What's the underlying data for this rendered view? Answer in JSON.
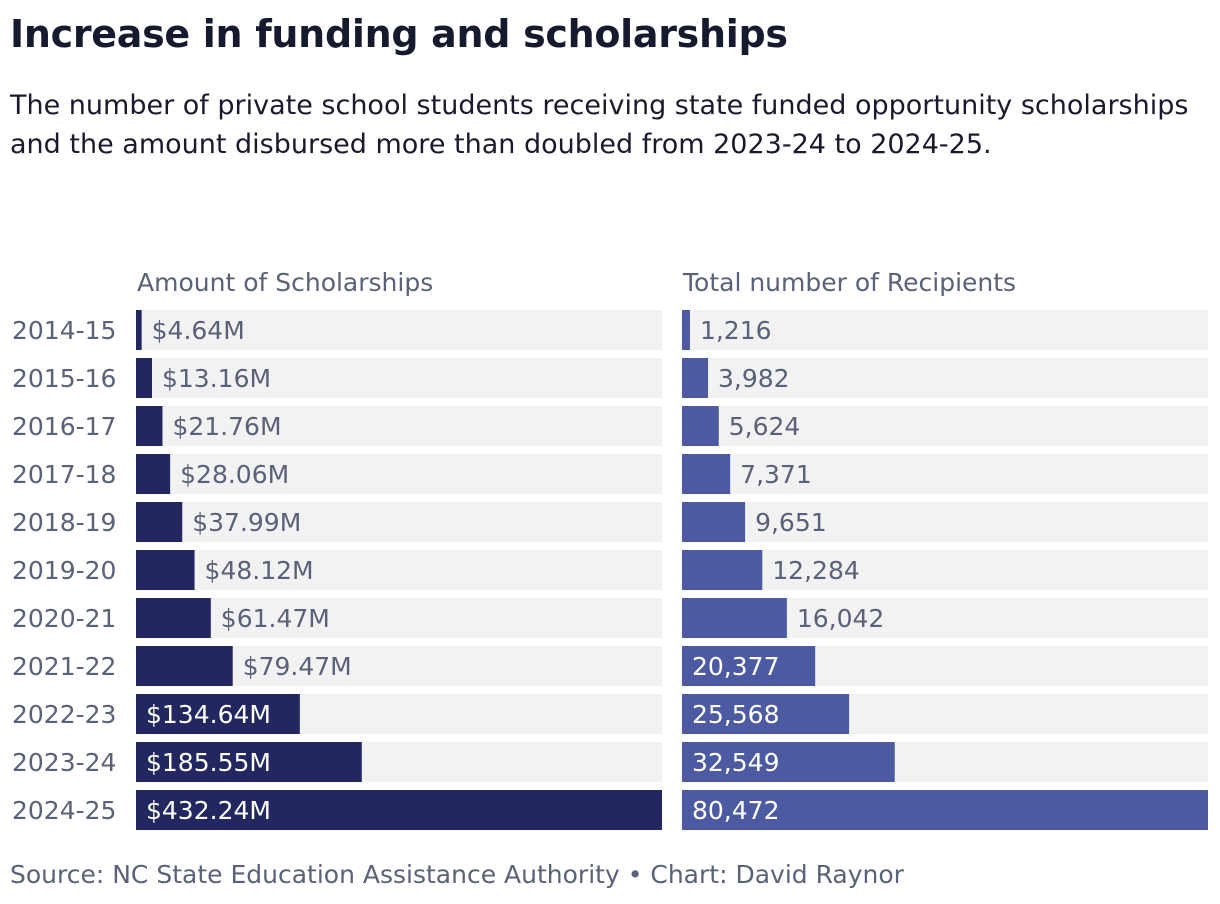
{
  "title": "Increase in funding and scholarships",
  "subtitle": "The number of private school students receiving state funded opportunity scholarships and the amount disbursed more than doubled from 2023-24 to 2024-25.",
  "source": "Source: NC State Education Assistance Authority • Chart: David Raynor",
  "colors": {
    "amount_bar": "#22275f",
    "recipients_bar": "#4c5aa2",
    "track": "#f2f2f3"
  },
  "chart_data": [
    {
      "type": "bar",
      "orientation": "horizontal",
      "title": "Amount of Scholarships",
      "categories": [
        "2014-15",
        "2015-16",
        "2016-17",
        "2017-18",
        "2018-19",
        "2019-20",
        "2020-21",
        "2021-22",
        "2022-23",
        "2023-24",
        "2024-25"
      ],
      "values": [
        4.64,
        13.16,
        21.76,
        28.06,
        37.99,
        48.12,
        61.47,
        79.47,
        134.64,
        185.55,
        432.24
      ],
      "labels": [
        "$4.64M",
        "$13.16M",
        "$21.76M",
        "$28.06M",
        "$37.99M",
        "$48.12M",
        "$61.47M",
        "$79.47M",
        "$134.64M",
        "$185.55M",
        "$432.24M"
      ],
      "unit": "millions of dollars",
      "xlim": [
        0,
        432.24
      ]
    },
    {
      "type": "bar",
      "orientation": "horizontal",
      "title": "Total number of Recipients",
      "categories": [
        "2014-15",
        "2015-16",
        "2016-17",
        "2017-18",
        "2018-19",
        "2019-20",
        "2020-21",
        "2021-22",
        "2022-23",
        "2023-24",
        "2024-25"
      ],
      "values": [
        1216,
        3982,
        5624,
        7371,
        9651,
        12284,
        16042,
        20377,
        25568,
        32549,
        80472
      ],
      "labels": [
        "1,216",
        "3,982",
        "5,624",
        "7,371",
        "9,651",
        "12,284",
        "16,042",
        "20,377",
        "25,568",
        "32,549",
        "80,472"
      ],
      "unit": "recipients",
      "xlim": [
        0,
        80472
      ]
    }
  ]
}
